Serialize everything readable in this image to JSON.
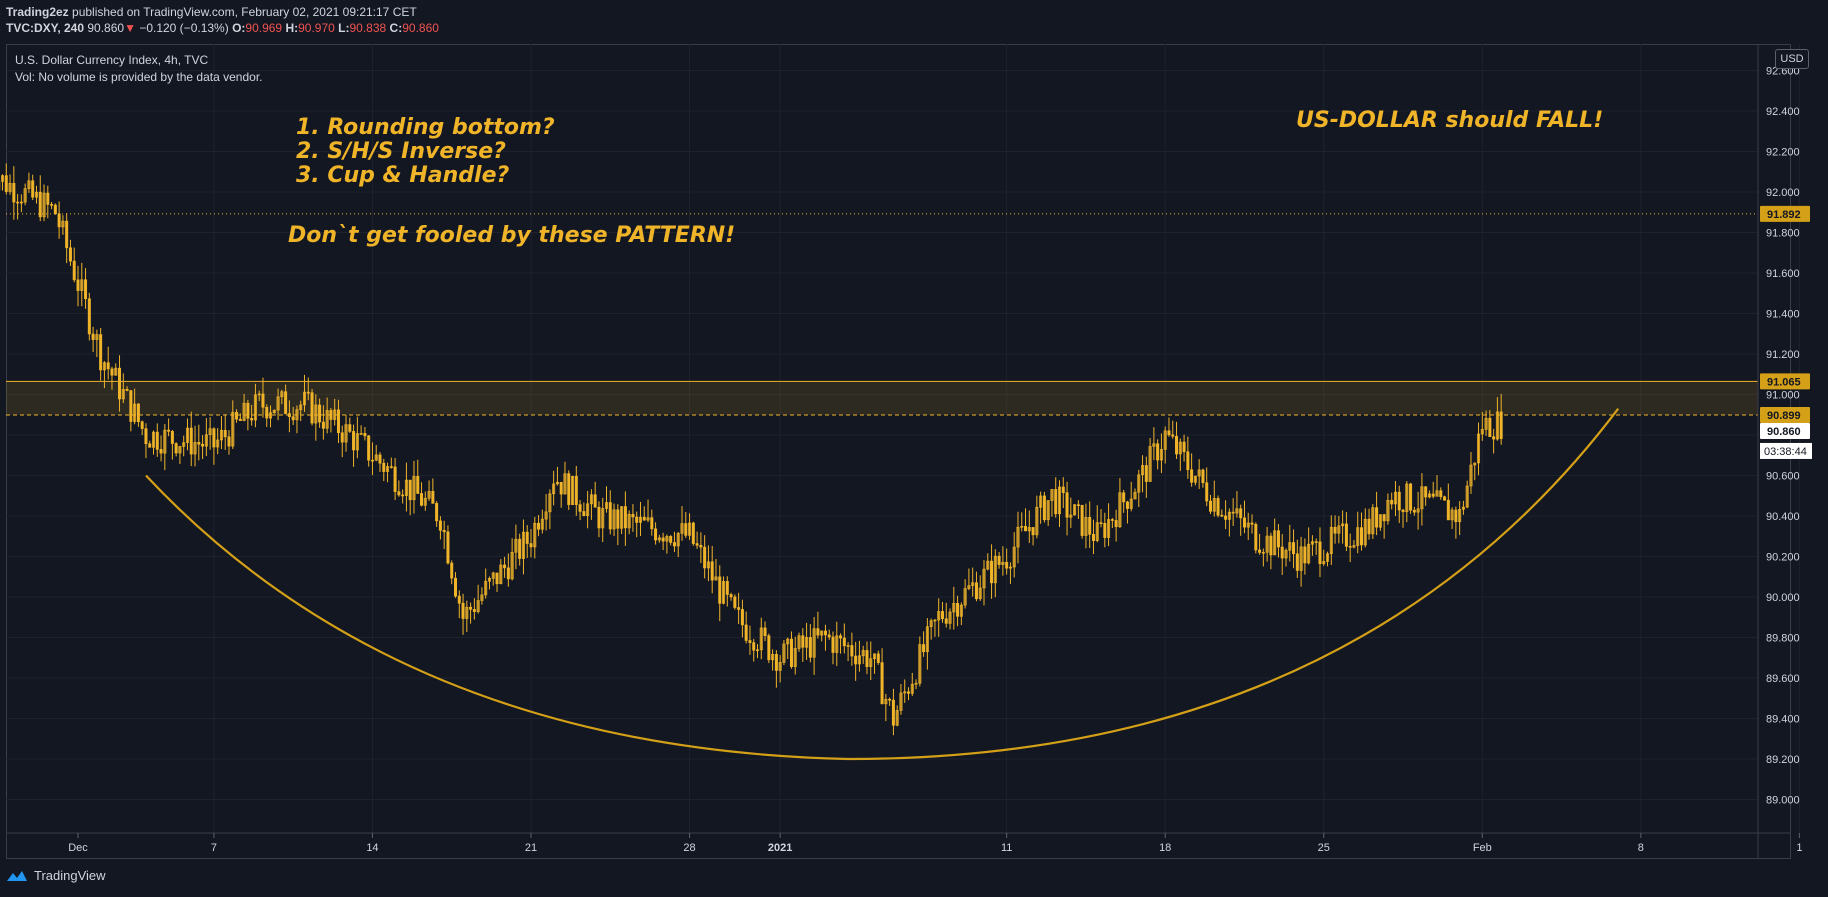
{
  "header": {
    "author": "Trading2ez",
    "published_text": "published on TradingView.com, February 02, 2021 09:21:17 CET",
    "symbol": "TVC:DXY, 240",
    "last": "90.860",
    "change_arrow": "▼",
    "change": "−0.120 (−0.13%)",
    "o_label": "O:",
    "o_value": "90.969",
    "h_label": "H:",
    "h_value": "90.970",
    "l_label": "L:",
    "l_value": "90.838",
    "c_label": "C:",
    "c_value": "90.860"
  },
  "legend": {
    "title": "U.S. Dollar Currency Index, 4h, TVC",
    "volume_note": "Vol: No volume is provided by the data vendor."
  },
  "annotations": {
    "patterns": [
      "1. Rounding bottom?",
      "2. S/H/S Inverse?",
      "3. Cup & Handle?"
    ],
    "warning": "Don`t get fooled by these PATTERN!",
    "headline": "US-DOLLAR should FALL!"
  },
  "price_scale": {
    "currency": "USD",
    "labels": [
      "92.600",
      "92.400",
      "92.200",
      "92.000",
      "91.800",
      "91.600",
      "91.400",
      "91.200",
      "91.000",
      "90.800",
      "90.600",
      "90.400",
      "90.200",
      "90.000",
      "89.800",
      "89.600",
      "89.400",
      "89.200",
      "89.000"
    ],
    "marker_91892": "91.892",
    "marker_91065": "91.065",
    "marker_90899": "90.899",
    "last_price": "90.860",
    "countdown": "03:38:44"
  },
  "time_scale": {
    "labels": [
      "Dec",
      "7",
      "14",
      "21",
      "28",
      "2021",
      "11",
      "18",
      "25",
      "Feb",
      "8",
      "1"
    ]
  },
  "footer": {
    "brand": "TradingView"
  },
  "colors": {
    "background": "#131722",
    "candle": "#f0b429",
    "zone": "#f0b429",
    "grid": "#1e222d",
    "text": "#d1d4dc"
  },
  "chart_data": {
    "type": "candlestick",
    "symbol": "DXY",
    "interval": "4h",
    "ylim": [
      88.8,
      92.7
    ],
    "grid": true,
    "horizontal_levels": [
      91.892,
      91.065,
      90.899
    ],
    "resistance_zone": [
      90.899,
      91.065
    ],
    "close_path": [
      [
        "2020-11-27",
        92.1
      ],
      [
        "2020-11-30",
        91.9
      ],
      [
        "2020-12-02",
        91.2
      ],
      [
        "2020-12-04",
        90.8
      ],
      [
        "2020-12-07",
        90.75
      ],
      [
        "2020-12-09",
        90.95
      ],
      [
        "2020-12-11",
        90.95
      ],
      [
        "2020-12-13",
        90.8
      ],
      [
        "2020-12-15",
        90.6
      ],
      [
        "2020-12-17",
        90.4
      ],
      [
        "2020-12-18",
        89.9
      ],
      [
        "2020-12-21",
        90.3
      ],
      [
        "2020-12-22",
        90.6
      ],
      [
        "2020-12-24",
        90.4
      ],
      [
        "2020-12-26",
        90.35
      ],
      [
        "2020-12-28",
        90.3
      ],
      [
        "2020-12-30",
        89.9
      ],
      [
        "2021-01-01",
        89.7
      ],
      [
        "2021-01-03",
        89.8
      ],
      [
        "2021-01-05",
        89.7
      ],
      [
        "2021-01-06",
        89.4
      ],
      [
        "2021-01-08",
        89.9
      ],
      [
        "2021-01-11",
        90.2
      ],
      [
        "2021-01-13",
        90.5
      ],
      [
        "2021-01-15",
        90.3
      ],
      [
        "2021-01-17",
        90.6
      ],
      [
        "2021-01-18",
        90.8
      ],
      [
        "2021-01-20",
        90.5
      ],
      [
        "2021-01-22",
        90.3
      ],
      [
        "2021-01-24",
        90.2
      ],
      [
        "2021-01-25",
        90.25
      ],
      [
        "2021-01-27",
        90.35
      ],
      [
        "2021-01-28",
        90.5
      ],
      [
        "2021-01-30",
        90.45
      ],
      [
        "2021-01-31",
        90.4
      ],
      [
        "2021-02-01",
        90.85
      ],
      [
        "2021-02-02",
        90.86
      ]
    ],
    "arc": {
      "from": [
        "2020-12-04",
        90.6
      ],
      "bottom": [
        "2021-01-04",
        89.2
      ],
      "to": [
        "2021-02-07",
        90.93
      ]
    }
  }
}
